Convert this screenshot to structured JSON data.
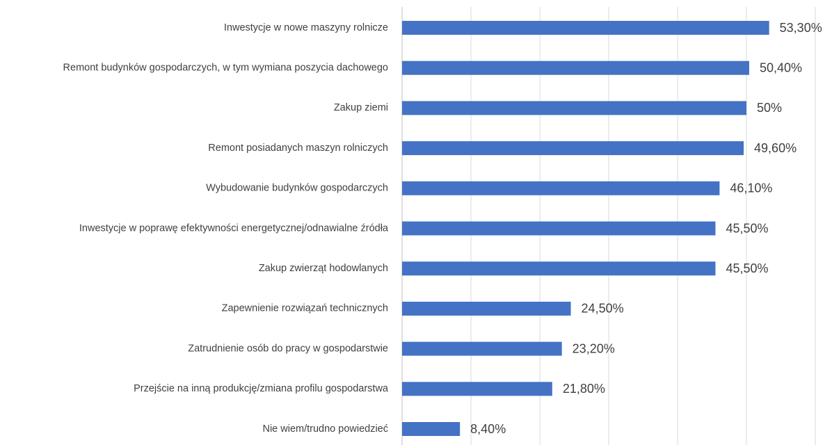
{
  "chart_data": {
    "type": "bar",
    "orientation": "horizontal",
    "categories": [
      "Inwestycje w nowe maszyny rolnicze",
      "Remont budynków gospodarczych, w tym wymiana poszycia dachowego",
      "Zakup ziemi",
      "Remont posiadanych maszyn rolniczych",
      "Wybudowanie budynków gospodarczych",
      "Inwestycje w poprawę efektywności energetycznej/odnawialne źródła",
      "Zakup zwierząt hodowlanych",
      "Zapewnienie rozwiązań technicznych",
      "Zatrudnienie osób do pracy w gospodarstwie",
      "Przejście na inną produkcję/zmiana profilu gospodarstwa",
      "Nie wiem/trudno powiedzieć"
    ],
    "values": [
      53.3,
      50.4,
      50,
      49.6,
      46.1,
      45.5,
      45.5,
      24.5,
      23.2,
      21.8,
      8.4
    ],
    "value_labels": [
      "53,30%",
      "50,40%",
      "50%",
      "49,60%",
      "46,10%",
      "45,50%",
      "45,50%",
      "24,50%",
      "23,20%",
      "21,80%",
      "8,40%"
    ],
    "color": "#4472c4",
    "xlim": [
      0,
      60
    ],
    "xticks": [
      0,
      10,
      20,
      30,
      40,
      50,
      60
    ],
    "grid": true
  }
}
